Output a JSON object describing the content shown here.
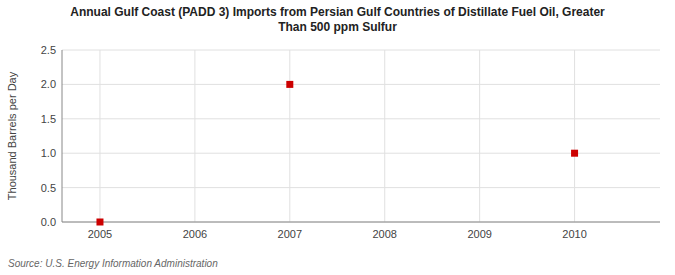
{
  "chart_data": {
    "type": "scatter",
    "title": "Annual Gulf Coast (PADD 3) Imports from Persian Gulf Countries of Distillate Fuel Oil, Greater\nThan 500 ppm Sulfur",
    "y_label": "Thousand Barrels per Day",
    "annotations": [
      "Source: U.S. Energy Information Administration"
    ],
    "x": [
      2005,
      2007,
      2010
    ],
    "values": [
      0.0,
      2.0,
      1.0
    ],
    "color": "#cc0000",
    "marker": "square",
    "xlim": [
      2004.6,
      2010.9
    ],
    "ylim": [
      0.0,
      2.5
    ],
    "xticks": [
      2005,
      2006,
      2007,
      2008,
      2009,
      2010
    ],
    "yticks": [
      {
        "value": 0.0,
        "label": "0.0"
      },
      0.5,
      {
        "value": 1.0,
        "label": "1.0"
      },
      1.5,
      {
        "value": 2.0,
        "label": "2.0"
      },
      2.5
    ],
    "grid": true
  }
}
